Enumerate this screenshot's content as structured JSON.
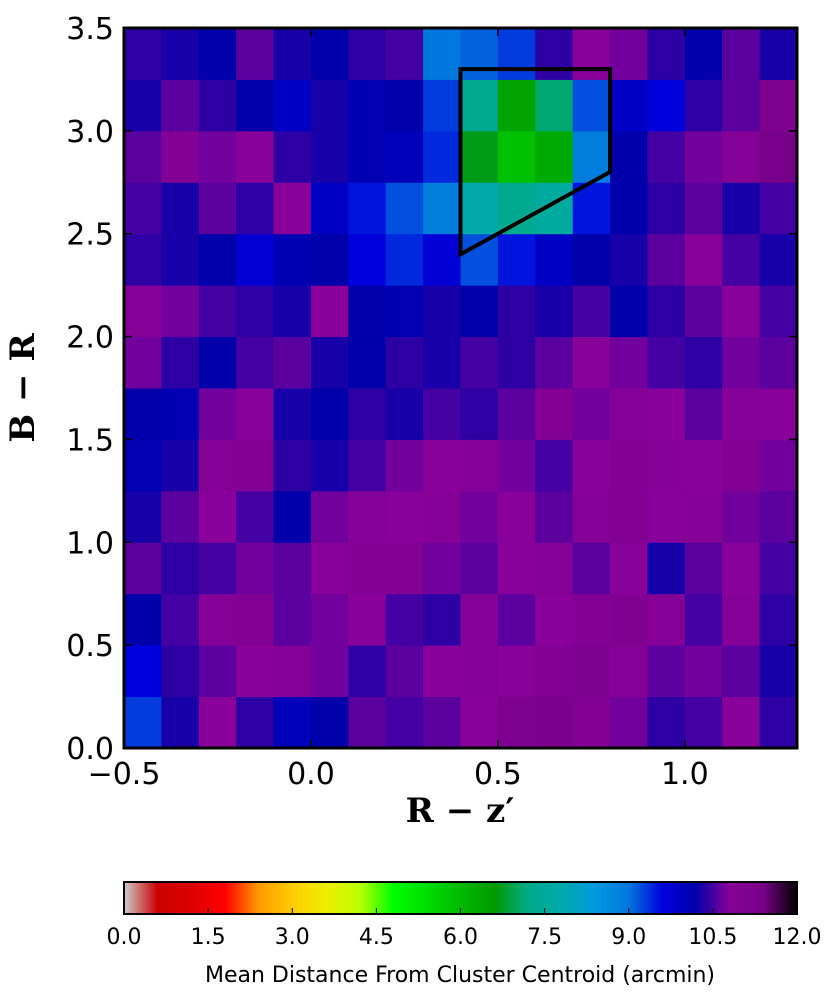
{
  "chart_data": {
    "type": "heatmap",
    "xlabel": "R − z′",
    "ylabel": "B − R",
    "xlim": [
      -0.5,
      1.3
    ],
    "ylim": [
      0,
      3.5
    ],
    "xticks": [
      {
        "value": -0.5,
        "label": "−0.5"
      },
      {
        "value": 0,
        "label": "0.0"
      },
      {
        "value": 0.5,
        "label": "0.5"
      },
      {
        "value": 1,
        "label": "1.0"
      }
    ],
    "yticks": [
      {
        "value": 0,
        "label": "0.0"
      },
      {
        "value": 0.5,
        "label": "0.5"
      },
      {
        "value": 1,
        "label": "1.0"
      },
      {
        "value": 1.5,
        "label": "1.5"
      },
      {
        "value": 2,
        "label": "2.0"
      },
      {
        "value": 2.5,
        "label": "2.5"
      },
      {
        "value": 3,
        "label": "3.0"
      },
      {
        "value": 3.5,
        "label": "3.5"
      }
    ],
    "xbins": [
      -0.5,
      -0.4,
      -0.3,
      -0.2,
      -0.1,
      0,
      0.1,
      0.2,
      0.3,
      0.4,
      0.5,
      0.6,
      0.7,
      0.8,
      0.9,
      1.0,
      1.1,
      1.2,
      1.3
    ],
    "ybins": [
      0,
      0.25,
      0.5,
      0.75,
      1,
      1.25,
      1.5,
      1.75,
      2,
      2.25,
      2.5,
      2.75,
      3,
      3.25,
      3.5
    ],
    "z": [
      [
        9.3,
        10.3,
        10.8,
        10.4,
        10.0,
        10.2,
        10.6,
        10.5,
        10.6,
        10.8,
        11.2,
        11.3,
        11.0,
        10.7,
        10.4,
        10.5,
        10.8,
        10.4
      ],
      [
        9.6,
        10.4,
        10.6,
        10.8,
        10.9,
        10.7,
        10.4,
        10.6,
        10.8,
        10.9,
        10.8,
        11.0,
        11.2,
        10.9,
        10.6,
        10.7,
        10.6,
        10.3
      ],
      [
        10.2,
        10.5,
        10.9,
        11.0,
        10.6,
        10.7,
        10.8,
        10.5,
        10.4,
        10.9,
        10.6,
        10.8,
        11.0,
        11.1,
        10.9,
        10.5,
        10.9,
        10.4
      ],
      [
        10.6,
        10.4,
        10.5,
        10.7,
        10.6,
        10.8,
        11.0,
        11.0,
        10.7,
        10.6,
        10.8,
        10.9,
        10.6,
        10.8,
        10.3,
        10.6,
        10.8,
        10.5
      ],
      [
        10.3,
        10.6,
        10.8,
        10.5,
        10.2,
        10.7,
        10.9,
        10.8,
        10.9,
        10.7,
        10.8,
        10.6,
        10.9,
        11.0,
        10.8,
        10.9,
        10.7,
        10.6
      ],
      [
        10.1,
        10.3,
        10.9,
        11.0,
        10.4,
        10.3,
        10.5,
        10.7,
        10.8,
        10.9,
        10.7,
        10.5,
        10.8,
        11.0,
        10.9,
        10.8,
        11.0,
        10.7
      ],
      [
        10.2,
        10.1,
        10.7,
        10.8,
        10.3,
        10.2,
        10.4,
        10.3,
        10.5,
        10.4,
        10.6,
        11.0,
        10.7,
        10.9,
        10.8,
        10.6,
        10.9,
        10.8
      ],
      [
        10.7,
        10.4,
        10.2,
        10.5,
        10.6,
        10.3,
        10.2,
        10.4,
        10.3,
        10.5,
        10.4,
        10.6,
        10.8,
        10.7,
        10.5,
        10.4,
        10.7,
        10.6
      ],
      [
        10.9,
        10.7,
        10.5,
        10.4,
        10.3,
        10.8,
        10.2,
        10.1,
        10.3,
        10.2,
        10.4,
        10.3,
        10.5,
        10.2,
        10.4,
        10.6,
        10.8,
        10.5
      ],
      [
        10.4,
        10.3,
        10.2,
        9.7,
        10.1,
        10.2,
        9.6,
        9.4,
        9.7,
        9.2,
        9.5,
        9.9,
        10.2,
        10.3,
        10.6,
        10.8,
        10.5,
        10.3
      ],
      [
        10.5,
        10.3,
        10.6,
        10.4,
        10.8,
        9.9,
        9.5,
        9.2,
        8.9,
        7.8,
        7.3,
        7.6,
        9.5,
        10.2,
        10.4,
        10.6,
        10.3,
        10.5
      ],
      [
        10.6,
        11.0,
        10.7,
        10.8,
        10.4,
        10.3,
        10.1,
        10.0,
        9.4,
        6.7,
        5.9,
        6.3,
        8.9,
        10.2,
        10.5,
        10.7,
        10.9,
        11.4
      ],
      [
        10.3,
        10.6,
        10.4,
        10.2,
        9.9,
        10.3,
        10.1,
        10.2,
        9.3,
        7.3,
        6.4,
        7.1,
        9.2,
        9.9,
        9.6,
        10.4,
        10.6,
        11.2
      ],
      [
        10.4,
        10.3,
        10.2,
        10.6,
        10.3,
        10.2,
        10.4,
        10.5,
        9.0,
        9.1,
        9.3,
        10.4,
        10.8,
        10.7,
        10.4,
        10.2,
        10.6,
        10.3
      ]
    ],
    "polygon": {
      "x": [
        0.4,
        0.4,
        0.8,
        0.8
      ],
      "y": [
        2.4,
        3.3,
        3.3,
        2.8
      ],
      "color": "#000000"
    },
    "colormap": [
      "#cccccc",
      "#cc0000",
      "#dd0000",
      "#ff0000",
      "#ff9900",
      "#ffcc00",
      "#eeee00",
      "#bbff00",
      "#00ff00",
      "#00dd00",
      "#00bb00",
      "#009900",
      "#00aa88",
      "#00aaaa",
      "#0099dd",
      "#0077dd",
      "#0000dd",
      "#0000aa",
      "#880099",
      "#770088",
      "#000000"
    ],
    "clim": [
      0,
      12
    ],
    "colorbar_label": "Mean Distance From Cluster Centroid (arcmin)",
    "cticks": [
      {
        "value": 0,
        "label": "0.0"
      },
      {
        "value": 1.5,
        "label": "1.5"
      },
      {
        "value": 3,
        "label": "3.0"
      },
      {
        "value": 4.5,
        "label": "4.5"
      },
      {
        "value": 6,
        "label": "6.0"
      },
      {
        "value": 7.5,
        "label": "7.5"
      },
      {
        "value": 9,
        "label": "9.0"
      },
      {
        "value": 10.5,
        "label": "10.5"
      },
      {
        "value": 12,
        "label": "12.0"
      }
    ]
  }
}
